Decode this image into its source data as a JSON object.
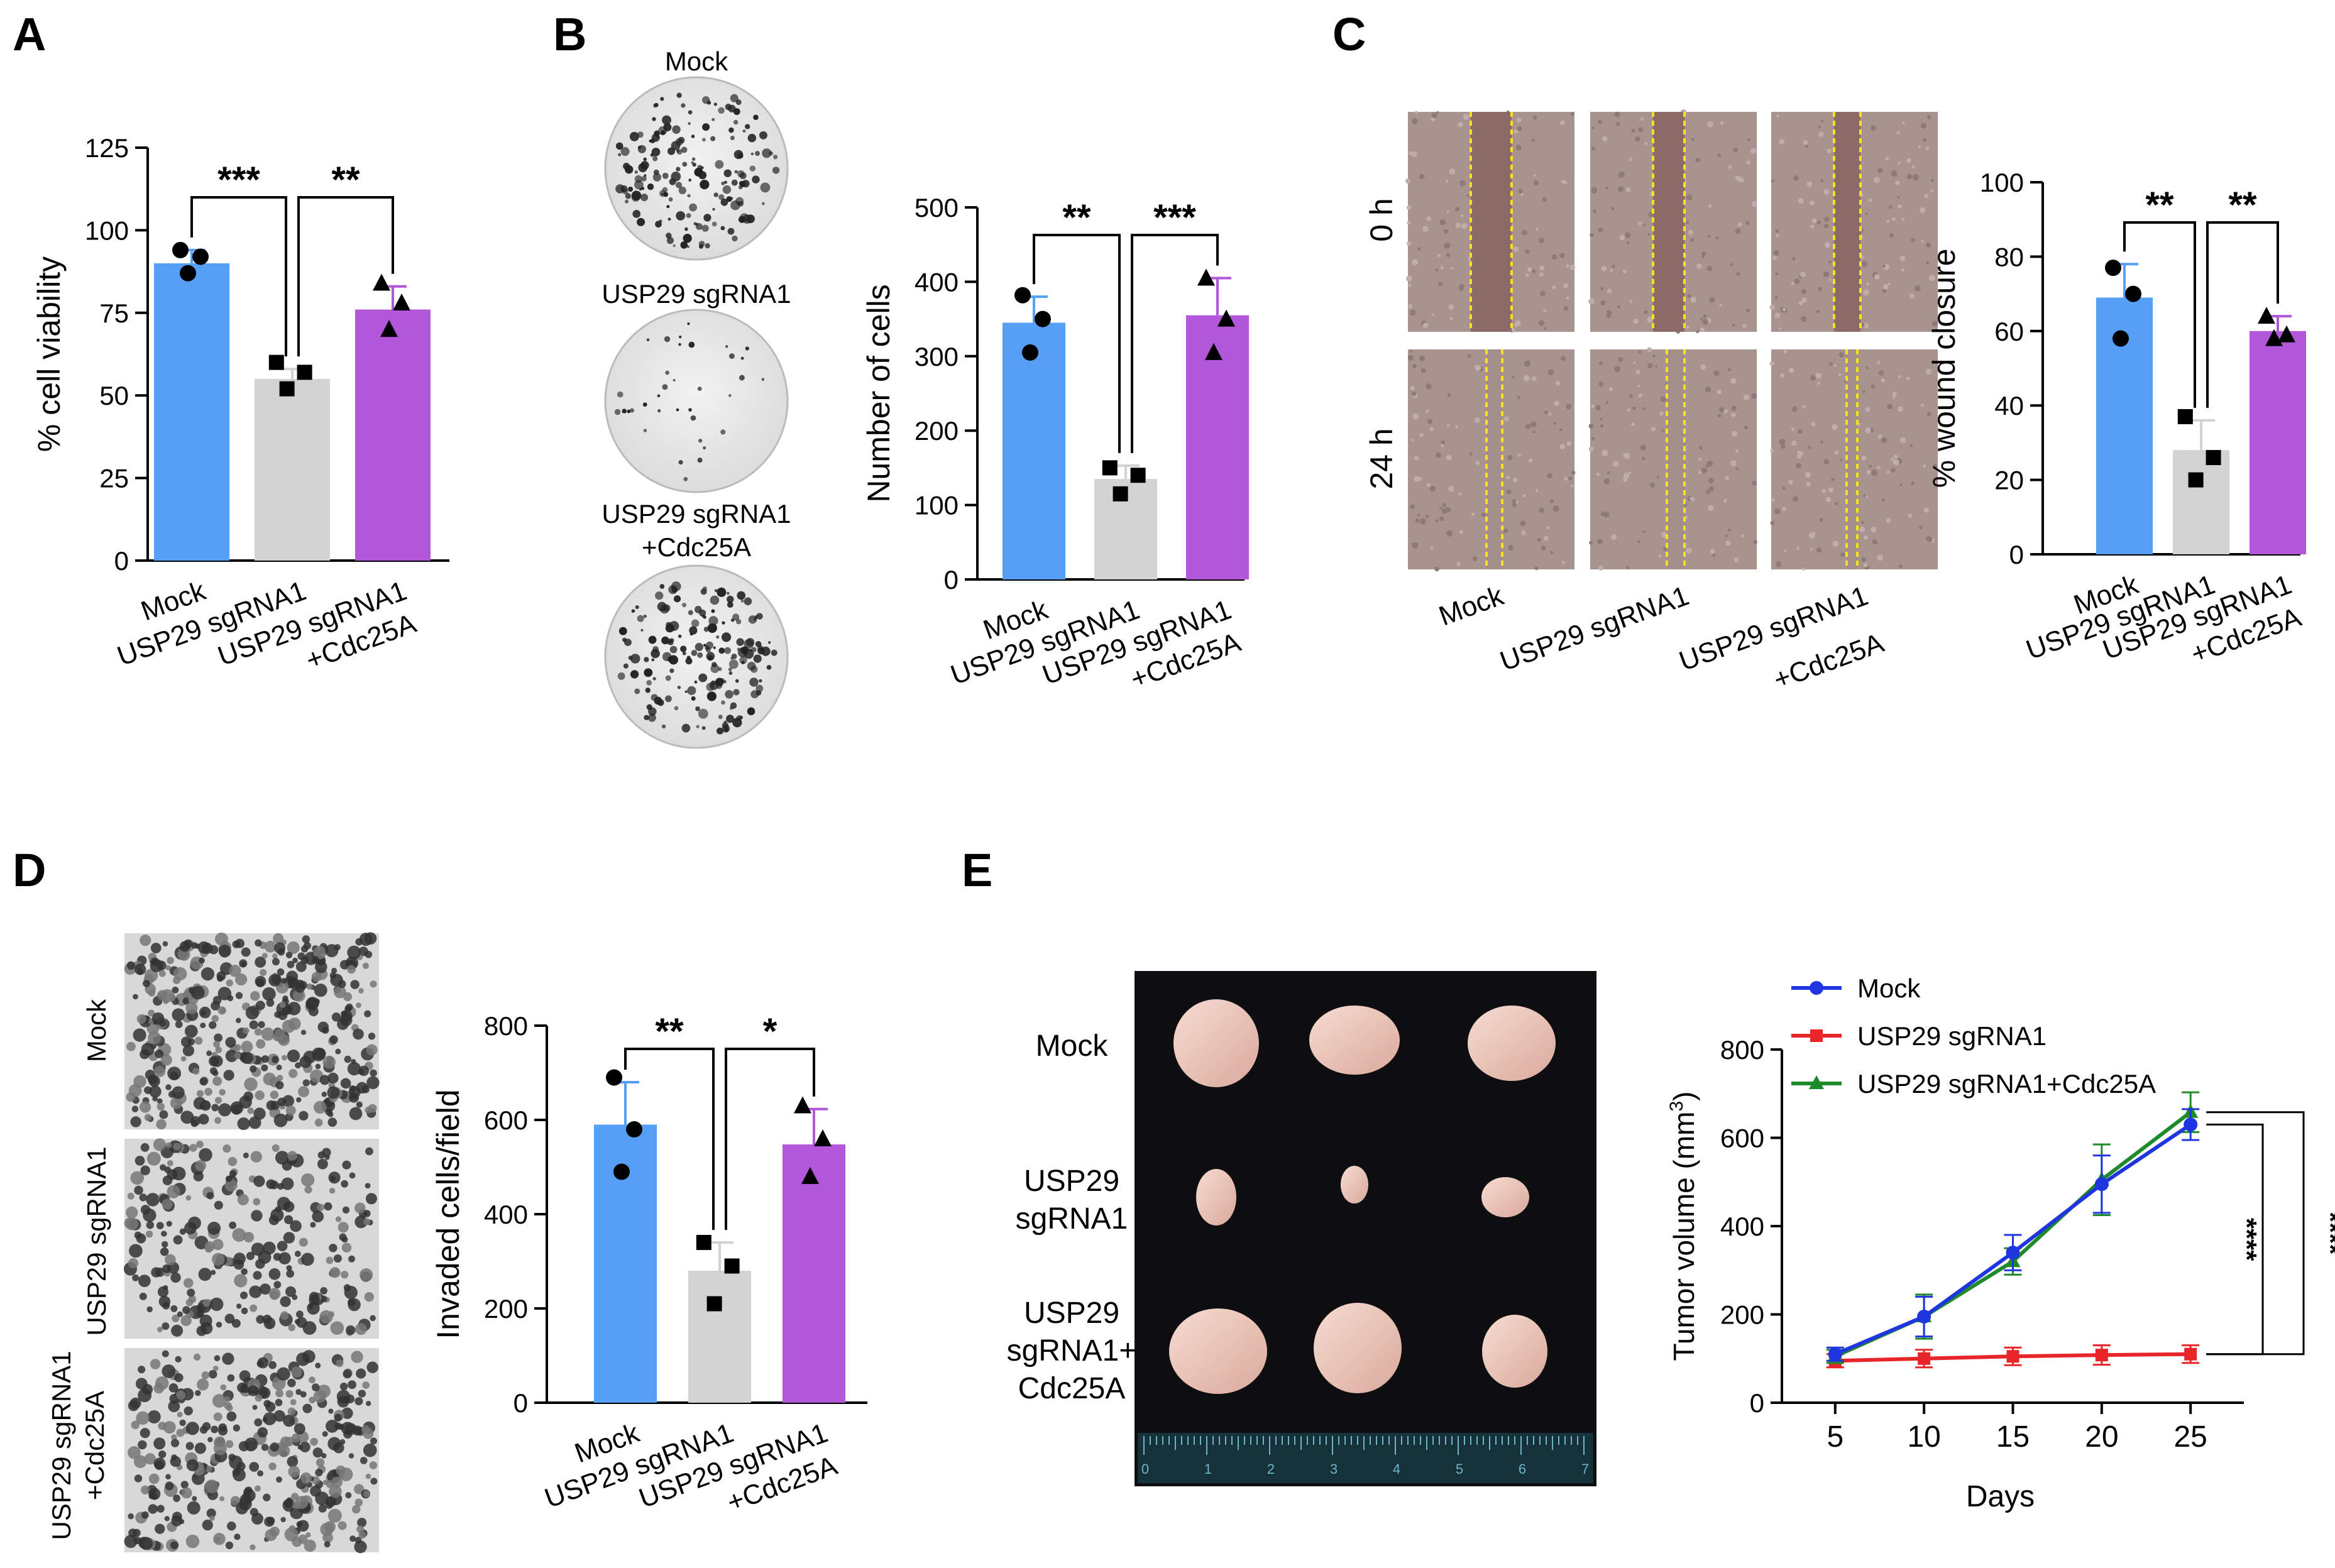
{
  "colors": {
    "mock": "#569ff7",
    "sgrna": "#d3d3d3",
    "cdc": "#b257d9",
    "line_mock": "#1f35e0",
    "line_sgrna": "#e8262a",
    "line_cdc": "#1f8a2a"
  },
  "panel_labels": [
    "A",
    "B",
    "C",
    "D",
    "E"
  ],
  "categories": [
    "Mock",
    "USP29 sgRNA1",
    "USP29 sgRNA1",
    "+Cdc25A"
  ],
  "panelB_images": {
    "mock": "Mock",
    "sg": "USP29 sgRNA1",
    "cdc_1": "USP29 sgRNA1",
    "cdc_2": "+Cdc25A"
  },
  "panelC_images": {
    "row_0h": "0 h",
    "row_24h": "24 h",
    "col_mock": "Mock",
    "col_sg": "USP29 sgRNA1",
    "col_cdc_1": "USP29 sgRNA1",
    "col_cdc_2": "+Cdc25A"
  },
  "panelD_images": {
    "mock": "Mock",
    "sg": "USP29 sgRNA1",
    "cdc_1": "USP29 sgRNA1",
    "cdc_2": "+Cdc25A"
  },
  "panelE_photo": {
    "mock": "Mock",
    "sg_1": "USP29",
    "sg_2": "sgRNA1",
    "cdc_1": "USP29",
    "cdc_2": "sgRNA1+",
    "cdc_3": "Cdc25A",
    "ruler": [
      "0",
      "1",
      "2",
      "3",
      "4",
      "5",
      "6",
      "7"
    ]
  },
  "chart_data": [
    {
      "id": "A",
      "type": "bar",
      "categories": [
        "Mock",
        "USP29 sgRNA1",
        "USP29 sgRNA1 +Cdc25A"
      ],
      "values": [
        90,
        55,
        76
      ],
      "errors": [
        4,
        3,
        7
      ],
      "points": [
        [
          94,
          92,
          87
        ],
        [
          60,
          57,
          52
        ],
        [
          84,
          78,
          70
        ]
      ],
      "ylabel": "% cell viability",
      "ylim": [
        0,
        125
      ],
      "yticks": [
        "0",
        "25",
        "50",
        "75",
        "100",
        "125"
      ],
      "significance": [
        "***",
        "**"
      ]
    },
    {
      "id": "B",
      "type": "bar",
      "categories": [
        "Mock",
        "USP29 sgRNA1",
        "USP29 sgRNA1 +Cdc25A"
      ],
      "values": [
        345,
        135,
        355
      ],
      "errors": [
        35,
        18,
        50
      ],
      "points": [
        [
          382,
          350,
          305
        ],
        [
          150,
          140,
          115
        ],
        [
          405,
          350,
          305
        ]
      ],
      "ylabel": "Number of cells",
      "ylim": [
        0,
        500
      ],
      "yticks": [
        "0",
        "100",
        "200",
        "300",
        "400",
        "500"
      ],
      "significance": [
        "**",
        "***"
      ]
    },
    {
      "id": "C",
      "type": "bar",
      "categories": [
        "Mock",
        "USP29 sgRNA1",
        "USP29 sgRNA1 +Cdc25A"
      ],
      "values": [
        69,
        28,
        60
      ],
      "errors": [
        9,
        8,
        4
      ],
      "points": [
        [
          77,
          70,
          58
        ],
        [
          37,
          26,
          20
        ],
        [
          64,
          59,
          58
        ]
      ],
      "ylabel": "% wound closure",
      "ylim": [
        0,
        100
      ],
      "yticks": [
        "0",
        "20",
        "40",
        "60",
        "80",
        "100"
      ],
      "significance": [
        "**",
        "**"
      ]
    },
    {
      "id": "D",
      "type": "bar",
      "categories": [
        "Mock",
        "USP29 sgRNA1",
        "USP29 sgRNA1 +Cdc25A"
      ],
      "values": [
        590,
        280,
        548
      ],
      "errors": [
        90,
        60,
        75
      ],
      "points": [
        [
          690,
          580,
          490
        ],
        [
          340,
          290,
          210
        ],
        [
          630,
          560,
          480
        ]
      ],
      "ylabel": "Invaded cells/field",
      "ylim": [
        0,
        800
      ],
      "yticks": [
        "0",
        "200",
        "400",
        "600",
        "800"
      ],
      "significance": [
        "**",
        "*"
      ]
    },
    {
      "id": "E",
      "type": "line",
      "x": [
        5,
        10,
        15,
        20,
        25
      ],
      "xticks": [
        "5",
        "10",
        "15",
        "20",
        "25"
      ],
      "series": [
        {
          "name": "Mock",
          "values": [
            110,
            195,
            340,
            495,
            630
          ],
          "errors": [
            15,
            45,
            40,
            65,
            35
          ]
        },
        {
          "name": "USP29 sgRNA1",
          "values": [
            95,
            100,
            105,
            108,
            110
          ],
          "errors": [
            15,
            20,
            20,
            22,
            20
          ]
        },
        {
          "name": "USP29 sgRNA1+Cdc25A",
          "values": [
            105,
            195,
            320,
            505,
            658
          ],
          "errors": [
            15,
            50,
            30,
            80,
            45
          ]
        }
      ],
      "xlabel": "Days",
      "ylabel_main": "Tumor volume (mm",
      "ylabel_sup": "3",
      "ylabel_end": ")",
      "ylim": [
        0,
        800
      ],
      "xlim": [
        2,
        28
      ],
      "yticks": [
        "0",
        "200",
        "400",
        "600",
        "800"
      ],
      "legend_position": "top-left",
      "significance": [
        "****",
        "****"
      ]
    }
  ]
}
